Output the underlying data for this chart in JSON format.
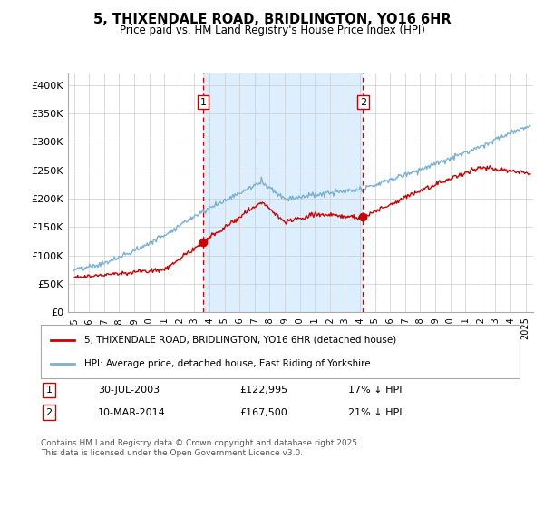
{
  "title": "5, THIXENDALE ROAD, BRIDLINGTON, YO16 6HR",
  "subtitle": "Price paid vs. HM Land Registry's House Price Index (HPI)",
  "red_label": "5, THIXENDALE ROAD, BRIDLINGTON, YO16 6HR (detached house)",
  "blue_label": "HPI: Average price, detached house, East Riding of Yorkshire",
  "transaction1_date": "30-JUL-2003",
  "transaction1_price": "£122,995",
  "transaction1_hpi": "17% ↓ HPI",
  "transaction2_date": "10-MAR-2014",
  "transaction2_price": "£167,500",
  "transaction2_hpi": "21% ↓ HPI",
  "footer": "Contains HM Land Registry data © Crown copyright and database right 2025.\nThis data is licensed under the Open Government Licence v3.0.",
  "red_color": "#cc0000",
  "blue_color": "#7ab0d4",
  "shade_color": "#ddeeff",
  "dashed_line_color": "#cc0000",
  "grid_color": "#cccccc",
  "bg_color": "#ffffff",
  "ylim": [
    0,
    420000
  ],
  "yticks": [
    0,
    50000,
    100000,
    150000,
    200000,
    250000,
    300000,
    350000,
    400000
  ],
  "ytick_labels": [
    "£0",
    "£50K",
    "£100K",
    "£150K",
    "£200K",
    "£250K",
    "£300K",
    "£350K",
    "£400K"
  ],
  "marker1_year": 2003.58,
  "marker1_red_val": 122995,
  "marker2_year": 2014.19,
  "marker2_red_val": 167500,
  "xlim_left": 1994.6,
  "xlim_right": 2025.5
}
